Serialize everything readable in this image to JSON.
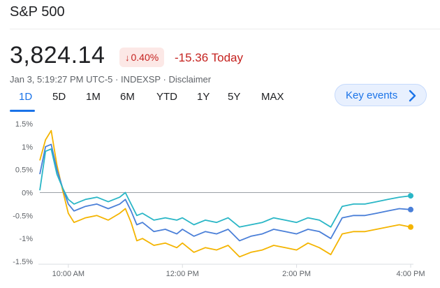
{
  "header": {
    "title": "S&P 500"
  },
  "quote": {
    "price": "3,824.14",
    "change_percent": "0.40%",
    "change_today": "-15.36 Today",
    "direction_icon": "arrow-down-icon",
    "negative_color": "#c5221f"
  },
  "meta": {
    "timestamp": "Jan 3, 5:19:27 PM UTC-5",
    "separator": "·",
    "exchange": "INDEXSP",
    "disclaimer": "Disclaimer"
  },
  "tabs": [
    {
      "label": "1D",
      "active": true
    },
    {
      "label": "5D",
      "active": false
    },
    {
      "label": "1M",
      "active": false
    },
    {
      "label": "6M",
      "active": false
    },
    {
      "label": "YTD",
      "active": false
    },
    {
      "label": "1Y",
      "active": false
    },
    {
      "label": "5Y",
      "active": false
    },
    {
      "label": "MAX",
      "active": false
    }
  ],
  "key_events": {
    "label": "Key events",
    "icon": "chevron-right-icon"
  },
  "colors": {
    "accent": "#1a73e8",
    "cyan": "#29b6c6",
    "blue": "#4a7fd8",
    "gold": "#f4b400"
  },
  "chart_data": {
    "type": "line",
    "ylim": [
      -1.5,
      1.5
    ],
    "yticks": [
      "1.5%",
      "1%",
      "0.5%",
      "0%",
      "-0.5%",
      "-1%",
      "-1.5%"
    ],
    "xticks": [
      "10:00 AM",
      "12:00 PM",
      "2:00 PM",
      "4:00 PM"
    ],
    "xdomain_hours": [
      9.5,
      16
    ],
    "baseline": 0,
    "series": [
      {
        "color": "#29b6c6",
        "x": [
          9.5,
          9.6,
          9.7,
          9.8,
          9.9,
          10.0,
          10.1,
          10.2,
          10.3,
          10.5,
          10.7,
          10.9,
          11.0,
          11.1,
          11.2,
          11.3,
          11.5,
          11.7,
          11.9,
          12.0,
          12.2,
          12.4,
          12.6,
          12.8,
          13.0,
          13.2,
          13.4,
          13.6,
          13.8,
          14.0,
          14.2,
          14.4,
          14.6,
          14.8,
          15.0,
          15.2,
          15.4,
          15.6,
          15.8,
          16.0
        ],
        "values": [
          0.05,
          0.9,
          0.95,
          0.4,
          0.1,
          -0.15,
          -0.25,
          -0.2,
          -0.15,
          -0.1,
          -0.2,
          -0.1,
          0.0,
          -0.25,
          -0.5,
          -0.45,
          -0.6,
          -0.55,
          -0.6,
          -0.55,
          -0.7,
          -0.6,
          -0.65,
          -0.55,
          -0.75,
          -0.7,
          -0.65,
          -0.55,
          -0.6,
          -0.65,
          -0.55,
          -0.6,
          -0.75,
          -0.3,
          -0.25,
          -0.25,
          -0.2,
          -0.15,
          -0.1,
          -0.07
        ]
      },
      {
        "color": "#4a7fd8",
        "x": [
          9.5,
          9.6,
          9.7,
          9.8,
          9.9,
          10.0,
          10.1,
          10.2,
          10.3,
          10.5,
          10.7,
          10.9,
          11.0,
          11.1,
          11.2,
          11.3,
          11.5,
          11.7,
          11.9,
          12.0,
          12.2,
          12.4,
          12.6,
          12.8,
          13.0,
          13.2,
          13.4,
          13.6,
          13.8,
          14.0,
          14.2,
          14.4,
          14.6,
          14.8,
          15.0,
          15.2,
          15.4,
          15.6,
          15.8,
          16.0
        ],
        "values": [
          0.4,
          1.0,
          1.05,
          0.5,
          0.1,
          -0.25,
          -0.4,
          -0.35,
          -0.3,
          -0.25,
          -0.35,
          -0.25,
          -0.15,
          -0.4,
          -0.7,
          -0.65,
          -0.85,
          -0.8,
          -0.9,
          -0.8,
          -0.95,
          -0.85,
          -0.9,
          -0.8,
          -1.05,
          -0.95,
          -0.9,
          -0.8,
          -0.85,
          -0.9,
          -0.8,
          -0.85,
          -1.0,
          -0.55,
          -0.5,
          -0.5,
          -0.45,
          -0.4,
          -0.35,
          -0.37
        ]
      },
      {
        "color": "#f4b400",
        "x": [
          9.5,
          9.6,
          9.7,
          9.8,
          9.9,
          10.0,
          10.1,
          10.2,
          10.3,
          10.5,
          10.7,
          10.9,
          11.0,
          11.1,
          11.2,
          11.3,
          11.5,
          11.7,
          11.9,
          12.0,
          12.2,
          12.4,
          12.6,
          12.8,
          13.0,
          13.2,
          13.4,
          13.6,
          13.8,
          14.0,
          14.2,
          14.4,
          14.6,
          14.8,
          15.0,
          15.2,
          15.4,
          15.6,
          15.8,
          16.0
        ],
        "values": [
          0.7,
          1.15,
          1.35,
          0.6,
          0.05,
          -0.45,
          -0.65,
          -0.6,
          -0.55,
          -0.5,
          -0.6,
          -0.45,
          -0.35,
          -0.65,
          -1.05,
          -1.0,
          -1.15,
          -1.1,
          -1.2,
          -1.1,
          -1.3,
          -1.2,
          -1.25,
          -1.15,
          -1.4,
          -1.3,
          -1.25,
          -1.15,
          -1.2,
          -1.25,
          -1.1,
          -1.2,
          -1.35,
          -0.9,
          -0.85,
          -0.85,
          -0.8,
          -0.75,
          -0.7,
          -0.75
        ]
      }
    ]
  }
}
